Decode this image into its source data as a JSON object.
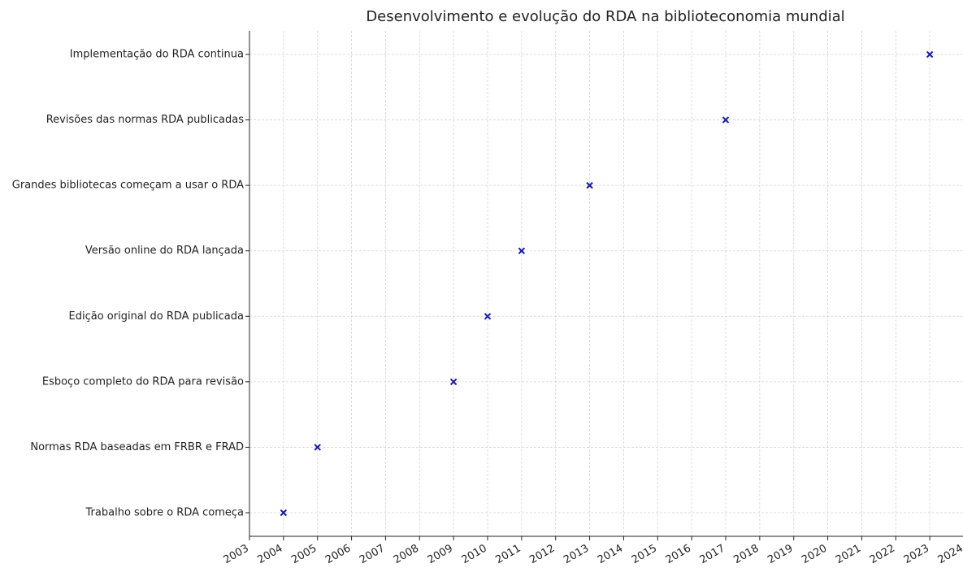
{
  "chart_data": {
    "type": "scatter",
    "title": "Desenvolvimento e evolução do RDA na biblioteconomia mundial",
    "categories": [
      "Trabalho sobre o RDA começa",
      "Normas RDA baseadas em FRBR e FRAD",
      "Esboço completo do RDA para revisão",
      "Edição original do RDA publicada",
      "Versão online do RDA lançada",
      "Grandes bibliotecas começam a usar o RDA",
      "Revisões das normas RDA publicadas",
      "Implementação do RDA continua"
    ],
    "values": [
      2004,
      2005,
      2009,
      2010,
      2011,
      2013,
      2017,
      2023
    ],
    "color": "#1a1aa6",
    "xlim": [
      2003,
      2024
    ],
    "xticks": [
      2003,
      2004,
      2005,
      2006,
      2007,
      2008,
      2009,
      2010,
      2011,
      2012,
      2013,
      2014,
      2015,
      2016,
      2017,
      2018,
      2019,
      2020,
      2021,
      2022,
      2023,
      2024
    ],
    "grid": true
  }
}
